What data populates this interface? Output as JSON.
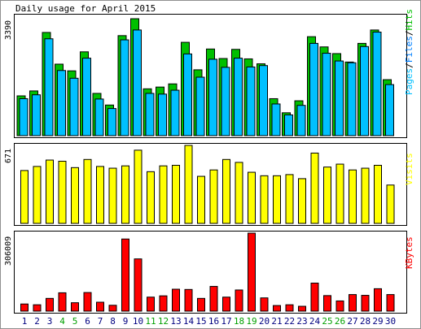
{
  "chart_data": [
    {
      "type": "bar",
      "title": "Daily usage for April 2015",
      "x": [
        1,
        2,
        3,
        4,
        5,
        6,
        7,
        8,
        9,
        10,
        11,
        12,
        13,
        14,
        15,
        16,
        17,
        18,
        19,
        20,
        21,
        22,
        23,
        24,
        25,
        26,
        27,
        28,
        29,
        30
      ],
      "weekend_days": [
        4,
        5,
        11,
        12,
        18,
        19,
        25,
        26
      ],
      "ylim": [
        0,
        3390
      ],
      "ymax_label": "3390",
      "legend": [
        {
          "label": "Pages",
          "color": "#00c0ff"
        },
        {
          "label": "Files",
          "color": "#0080ff"
        },
        {
          "label": "Hits",
          "color": "#00c000"
        }
      ],
      "series": [
        {
          "name": "Hits",
          "color": "#00c000",
          "values": [
            1130,
            1270,
            2930,
            2030,
            1840,
            2380,
            1200,
            870,
            2840,
            3320,
            1330,
            1380,
            1470,
            2650,
            1870,
            2460,
            2190,
            2450,
            2180,
            2040,
            1050,
            650,
            990,
            2810,
            2520,
            2330,
            2090,
            2620,
            3000,
            1590
          ]
        },
        {
          "name": "Files",
          "color": "#00c0ff",
          "values": [
            1050,
            1160,
            2750,
            1850,
            1630,
            2200,
            1040,
            770,
            2720,
            3000,
            1200,
            1180,
            1290,
            2320,
            1660,
            2170,
            1940,
            2200,
            1950,
            1990,
            900,
            590,
            860,
            2620,
            2340,
            2120,
            2070,
            2530,
            2940,
            1450
          ]
        }
      ]
    },
    {
      "type": "bar",
      "ylim": [
        0,
        671
      ],
      "ymax_label": "671",
      "legend": [
        {
          "label": "Visits",
          "color": "#ffff00"
        }
      ],
      "series": [
        {
          "name": "Visits",
          "color": "#ffff00",
          "values": [
            455,
            490,
            545,
            535,
            480,
            550,
            490,
            475,
            495,
            630,
            445,
            495,
            500,
            671,
            405,
            460,
            550,
            525,
            440,
            410,
            410,
            420,
            385,
            605,
            485,
            510,
            460,
            475,
            500,
            330
          ]
        }
      ]
    },
    {
      "type": "bar",
      "ylim": [
        0,
        306009
      ],
      "ymax_label": "306009",
      "legend": [
        {
          "label": "KBytes",
          "color": "#ff0000"
        }
      ],
      "series": [
        {
          "name": "KBytes",
          "color": "#ff0000",
          "values": [
            28000,
            25000,
            50000,
            72000,
            33000,
            73000,
            35000,
            23000,
            283000,
            205000,
            55000,
            60000,
            86000,
            85000,
            50000,
            97000,
            55000,
            83000,
            306009,
            52000,
            22000,
            25000,
            19000,
            110000,
            61000,
            40000,
            65000,
            62000,
            88000,
            65000
          ]
        }
      ]
    }
  ],
  "colors": {
    "weekday_label": "#000080",
    "weekend_label": "#00a000",
    "background": "#ffffff"
  }
}
